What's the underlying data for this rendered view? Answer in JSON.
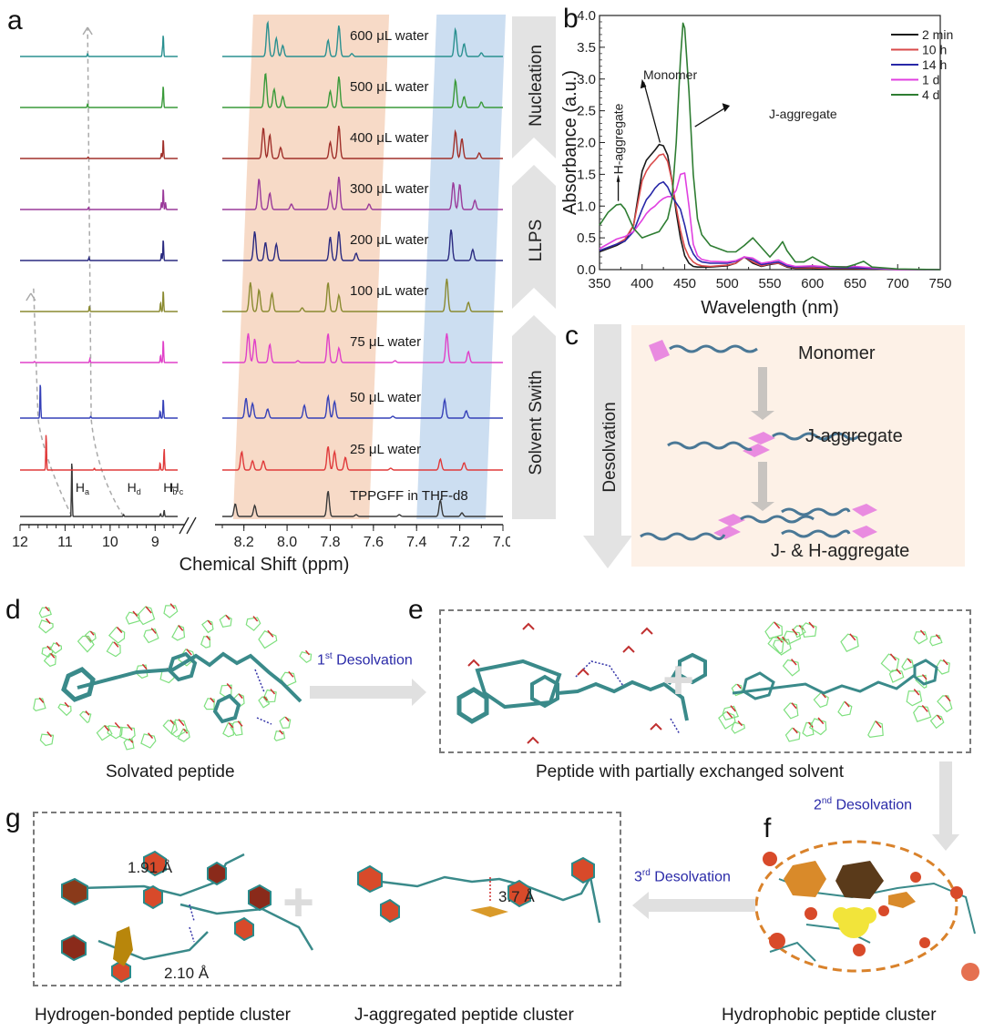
{
  "panels": {
    "a": "a",
    "b": "b",
    "c": "c",
    "d": "d",
    "e": "e",
    "f": "f",
    "g": "g"
  },
  "chart_data": [
    {
      "id": "a",
      "type": "line",
      "title": "",
      "xlabel": "Chemical Shift (ppm)",
      "ylabel": "",
      "x_axis_broken": true,
      "xlim_left": [
        12,
        8.5
      ],
      "xlim_right": [
        8.3,
        7.0
      ],
      "xticks_left": [
        "12",
        "11",
        "10",
        "9"
      ],
      "xticks_right": [
        "8.2",
        "8.0",
        "7.8",
        "7.6",
        "7.4",
        "7.2",
        "7.0"
      ],
      "highlight_bands": [
        {
          "name": "orange",
          "range_ppm": [
            8.25,
            7.62
          ],
          "color": "#f6d3bd"
        },
        {
          "name": "blue",
          "range_ppm": [
            7.4,
            7.08
          ],
          "color": "#c3d8ef"
        }
      ],
      "stage_arrows": [
        "Solvent Swith",
        "LLPS",
        "Nucleation"
      ],
      "proton_labels": [
        {
          "label": "H",
          "sub": "a",
          "ppm": 10.85
        },
        {
          "label": "H",
          "sub": "d",
          "ppm": 9.7
        },
        {
          "label": "H",
          "sub": "b",
          "ppm": 8.9
        },
        {
          "label": "H",
          "sub": "c",
          "ppm": 8.75
        }
      ],
      "series": [
        {
          "name": "TPPGFF in THF-d8",
          "color": "#3a3a3a",
          "peaks": [
            [
              10.85,
              1.0
            ],
            [
              9.7,
              0.05
            ],
            [
              8.88,
              0.08
            ],
            [
              8.8,
              0.18
            ],
            [
              8.24,
              0.35
            ],
            [
              8.15,
              0.3
            ],
            [
              7.81,
              0.7
            ],
            [
              7.68,
              0.05
            ],
            [
              7.48,
              0.05
            ],
            [
              7.29,
              0.45
            ],
            [
              7.19,
              0.1
            ]
          ]
        },
        {
          "name": "25 μL water",
          "color": "#e03a3a",
          "peaks": [
            [
              11.42,
              1.0
            ],
            [
              10.35,
              0.05
            ],
            [
              8.89,
              0.2
            ],
            [
              8.8,
              0.6
            ],
            [
              8.21,
              0.5
            ],
            [
              8.16,
              0.25
            ],
            [
              8.11,
              0.25
            ],
            [
              7.81,
              0.65
            ],
            [
              7.78,
              0.5
            ],
            [
              7.73,
              0.35
            ],
            [
              7.52,
              0.05
            ],
            [
              7.29,
              0.3
            ],
            [
              7.18,
              0.2
            ]
          ]
        },
        {
          "name": "50 μL water",
          "color": "#3540b8",
          "peaks": [
            [
              11.55,
              1.0
            ],
            [
              10.43,
              0.05
            ],
            [
              8.89,
              0.2
            ],
            [
              8.82,
              0.55
            ],
            [
              8.19,
              0.55
            ],
            [
              8.16,
              0.4
            ],
            [
              8.09,
              0.25
            ],
            [
              7.92,
              0.35
            ],
            [
              7.81,
              0.6
            ],
            [
              7.78,
              0.45
            ],
            [
              7.51,
              0.05
            ],
            [
              7.27,
              0.5
            ],
            [
              7.17,
              0.2
            ]
          ]
        },
        {
          "name": "75 μL water",
          "color": "#e040c8",
          "peaks": [
            [
              11.68,
              0.03
            ],
            [
              10.45,
              0.1
            ],
            [
              8.88,
              0.2
            ],
            [
              8.82,
              0.65
            ],
            [
              8.18,
              0.8
            ],
            [
              8.15,
              0.65
            ],
            [
              8.08,
              0.5
            ],
            [
              7.95,
              0.05
            ],
            [
              7.81,
              0.8
            ],
            [
              7.76,
              0.4
            ],
            [
              7.5,
              0.05
            ],
            [
              7.26,
              0.8
            ],
            [
              7.16,
              0.3
            ]
          ]
        },
        {
          "name": "100 μL water",
          "color": "#8a8a30",
          "peaks": [
            [
              10.46,
              0.15
            ],
            [
              8.88,
              0.25
            ],
            [
              8.82,
              0.6
            ],
            [
              8.17,
              0.8
            ],
            [
              8.13,
              0.6
            ],
            [
              8.07,
              0.5
            ],
            [
              7.93,
              0.1
            ],
            [
              7.81,
              0.8
            ],
            [
              7.76,
              0.45
            ],
            [
              7.26,
              0.9
            ],
            [
              7.16,
              0.25
            ]
          ]
        },
        {
          "name": "200 μL water",
          "color": "#2a2a80",
          "peaks": [
            [
              10.47,
              0.08
            ],
            [
              8.86,
              0.2
            ],
            [
              8.82,
              0.6
            ],
            [
              8.15,
              0.8
            ],
            [
              8.1,
              0.5
            ],
            [
              8.05,
              0.45
            ],
            [
              7.8,
              0.65
            ],
            [
              7.76,
              0.8
            ],
            [
              7.68,
              0.2
            ],
            [
              7.24,
              0.85
            ],
            [
              7.14,
              0.3
            ]
          ]
        },
        {
          "name": "300 μL water",
          "color": "#9a3a9a",
          "peaks": [
            [
              10.48,
              0.06
            ],
            [
              8.86,
              0.2
            ],
            [
              8.82,
              0.6
            ],
            [
              8.77,
              0.2
            ],
            [
              8.13,
              0.85
            ],
            [
              8.08,
              0.45
            ],
            [
              7.98,
              0.15
            ],
            [
              7.8,
              0.5
            ],
            [
              7.76,
              0.9
            ],
            [
              7.62,
              0.15
            ],
            [
              7.23,
              0.75
            ],
            [
              7.2,
              0.7
            ],
            [
              7.13,
              0.25
            ]
          ]
        },
        {
          "name": "400 μL water",
          "color": "#a0302a",
          "peaks": [
            [
              10.49,
              0.04
            ],
            [
              8.86,
              0.15
            ],
            [
              8.82,
              0.55
            ],
            [
              8.11,
              0.85
            ],
            [
              8.08,
              0.65
            ],
            [
              8.03,
              0.3
            ],
            [
              7.8,
              0.45
            ],
            [
              7.76,
              0.9
            ],
            [
              7.22,
              0.75
            ],
            [
              7.19,
              0.55
            ],
            [
              7.11,
              0.15
            ]
          ]
        },
        {
          "name": "500 μL water",
          "color": "#3a9a3a",
          "peaks": [
            [
              10.5,
              0.1
            ],
            [
              8.84,
              0.15
            ],
            [
              8.82,
              0.6
            ],
            [
              8.1,
              0.95
            ],
            [
              8.06,
              0.5
            ],
            [
              8.02,
              0.3
            ],
            [
              7.8,
              0.45
            ],
            [
              7.76,
              0.85
            ],
            [
              7.22,
              0.75
            ],
            [
              7.18,
              0.3
            ],
            [
              7.1,
              0.15
            ]
          ]
        },
        {
          "name": "600 μL water",
          "color": "#2a9090",
          "peaks": [
            [
              10.5,
              0.08
            ],
            [
              8.84,
              0.15
            ],
            [
              8.82,
              0.6
            ],
            [
              8.09,
              0.95
            ],
            [
              8.05,
              0.5
            ],
            [
              8.02,
              0.3
            ],
            [
              7.81,
              0.45
            ],
            [
              7.76,
              0.85
            ],
            [
              7.7,
              0.08
            ],
            [
              7.22,
              0.75
            ],
            [
              7.18,
              0.35
            ],
            [
              7.1,
              0.1
            ]
          ]
        }
      ]
    },
    {
      "id": "b",
      "type": "line",
      "title": "",
      "xlabel": "Wavelength (nm)",
      "ylabel": "Absorbance (a.u.)",
      "xlim": [
        350,
        750
      ],
      "ylim": [
        0,
        4.0
      ],
      "xticks": [
        350,
        400,
        450,
        500,
        550,
        600,
        650,
        700,
        750
      ],
      "yticks": [
        "0.0",
        "0.5",
        "1.0",
        "1.5",
        "2.0",
        "2.5",
        "3.0",
        "3.5",
        "4.0"
      ],
      "legend_position": "top-right",
      "annotations": [
        {
          "text": "Monomer",
          "x": 420,
          "y": 1.95
        },
        {
          "text": "J-aggregate",
          "x": 460,
          "y": 2.25
        },
        {
          "text": "H-aggregate",
          "x": 372,
          "y": 1.05
        }
      ],
      "series": [
        {
          "name": "2 min",
          "color": "#1a1a1a",
          "x": [
            350,
            370,
            380,
            390,
            400,
            405,
            410,
            415,
            420,
            425,
            430,
            435,
            440,
            445,
            450,
            455,
            460,
            465,
            470,
            480,
            500,
            510,
            520,
            530,
            540,
            550,
            560,
            570,
            580,
            600,
            620,
            650,
            700,
            750
          ],
          "y": [
            0.28,
            0.38,
            0.45,
            0.7,
            1.55,
            1.72,
            1.8,
            1.88,
            1.97,
            1.95,
            1.8,
            1.4,
            0.9,
            0.5,
            0.22,
            0.1,
            0.05,
            0.04,
            0.04,
            0.04,
            0.06,
            0.1,
            0.2,
            0.1,
            0.05,
            0.08,
            0.1,
            0.04,
            0.02,
            0.02,
            0.01,
            0.01,
            0.0,
            0.0
          ]
        },
        {
          "name": "10 h",
          "color": "#d94a4a",
          "x": [
            350,
            370,
            380,
            390,
            400,
            405,
            410,
            415,
            420,
            425,
            430,
            435,
            440,
            445,
            450,
            455,
            460,
            465,
            470,
            480,
            500,
            510,
            520,
            530,
            540,
            550,
            560,
            570,
            580,
            600,
            620,
            650,
            700,
            750
          ],
          "y": [
            0.3,
            0.4,
            0.48,
            0.7,
            1.4,
            1.55,
            1.65,
            1.72,
            1.8,
            1.82,
            1.7,
            1.4,
            0.98,
            0.62,
            0.35,
            0.2,
            0.12,
            0.08,
            0.06,
            0.05,
            0.07,
            0.1,
            0.2,
            0.12,
            0.06,
            0.09,
            0.1,
            0.05,
            0.03,
            0.03,
            0.02,
            0.02,
            0.0,
            0.0
          ]
        },
        {
          "name": "14 h",
          "color": "#2828a8",
          "x": [
            350,
            370,
            380,
            390,
            400,
            405,
            410,
            415,
            420,
            425,
            430,
            435,
            440,
            445,
            450,
            455,
            460,
            465,
            470,
            480,
            500,
            510,
            520,
            530,
            540,
            550,
            560,
            570,
            580,
            600,
            620,
            650,
            700,
            750
          ],
          "y": [
            0.3,
            0.4,
            0.45,
            0.6,
            0.95,
            1.1,
            1.18,
            1.28,
            1.35,
            1.38,
            1.3,
            1.15,
            1.05,
            0.95,
            0.7,
            0.4,
            0.25,
            0.16,
            0.12,
            0.1,
            0.1,
            0.13,
            0.2,
            0.15,
            0.08,
            0.1,
            0.12,
            0.06,
            0.04,
            0.05,
            0.03,
            0.03,
            0.0,
            0.0
          ]
        },
        {
          "name": "1 d",
          "color": "#e040e0",
          "x": [
            350,
            370,
            380,
            390,
            400,
            405,
            410,
            415,
            420,
            425,
            430,
            435,
            440,
            445,
            450,
            455,
            460,
            465,
            470,
            480,
            500,
            510,
            520,
            530,
            540,
            550,
            560,
            570,
            580,
            600,
            620,
            650,
            700,
            750
          ],
          "y": [
            0.33,
            0.48,
            0.52,
            0.6,
            0.78,
            0.88,
            0.95,
            1.0,
            1.07,
            1.12,
            1.15,
            1.15,
            1.25,
            1.5,
            1.52,
            1.0,
            0.4,
            0.22,
            0.16,
            0.13,
            0.12,
            0.14,
            0.2,
            0.18,
            0.1,
            0.12,
            0.15,
            0.08,
            0.05,
            0.06,
            0.04,
            0.05,
            0.0,
            0.0
          ]
        },
        {
          "name": "4 d",
          "color": "#2e7d32",
          "x": [
            350,
            360,
            370,
            375,
            380,
            390,
            400,
            410,
            420,
            430,
            435,
            440,
            445,
            448,
            450,
            455,
            460,
            465,
            470,
            480,
            490,
            500,
            510,
            520,
            530,
            540,
            550,
            560,
            565,
            570,
            580,
            590,
            600,
            610,
            620,
            640,
            650,
            660,
            670,
            700,
            750
          ],
          "y": [
            0.7,
            0.9,
            1.02,
            1.03,
            0.95,
            0.65,
            0.5,
            0.55,
            0.6,
            0.8,
            1.1,
            2.0,
            3.3,
            3.88,
            3.8,
            2.8,
            1.5,
            0.8,
            0.55,
            0.38,
            0.33,
            0.28,
            0.28,
            0.38,
            0.5,
            0.35,
            0.2,
            0.35,
            0.44,
            0.3,
            0.12,
            0.12,
            0.2,
            0.12,
            0.05,
            0.04,
            0.08,
            0.13,
            0.04,
            0.01,
            0.0
          ]
        }
      ]
    }
  ],
  "panel_c": {
    "side_label": "Desolvation",
    "labels": [
      "Monomer",
      "J-aggregate",
      "J- & H-aggregate"
    ]
  },
  "panel_d": {
    "caption": "Solvated peptide"
  },
  "panel_e": {
    "caption": "Peptide with partially exchanged solvent"
  },
  "panel_f": {
    "caption": "Hydrophobic peptide cluster"
  },
  "panel_g": {
    "caption_left": "Hydrogen-bonded peptide cluster",
    "caption_right": "J-aggregated peptide cluster",
    "distances": [
      "1.91 Å",
      "2.10 Å",
      "3.7 Å"
    ]
  },
  "desolvation_steps": [
    {
      "num": "1",
      "sup": "st",
      "text": " Desolvation"
    },
    {
      "num": "2",
      "sup": "nd",
      "text": " Desolvation"
    },
    {
      "num": "3",
      "sup": "rd",
      "text": " Desolvation"
    }
  ]
}
